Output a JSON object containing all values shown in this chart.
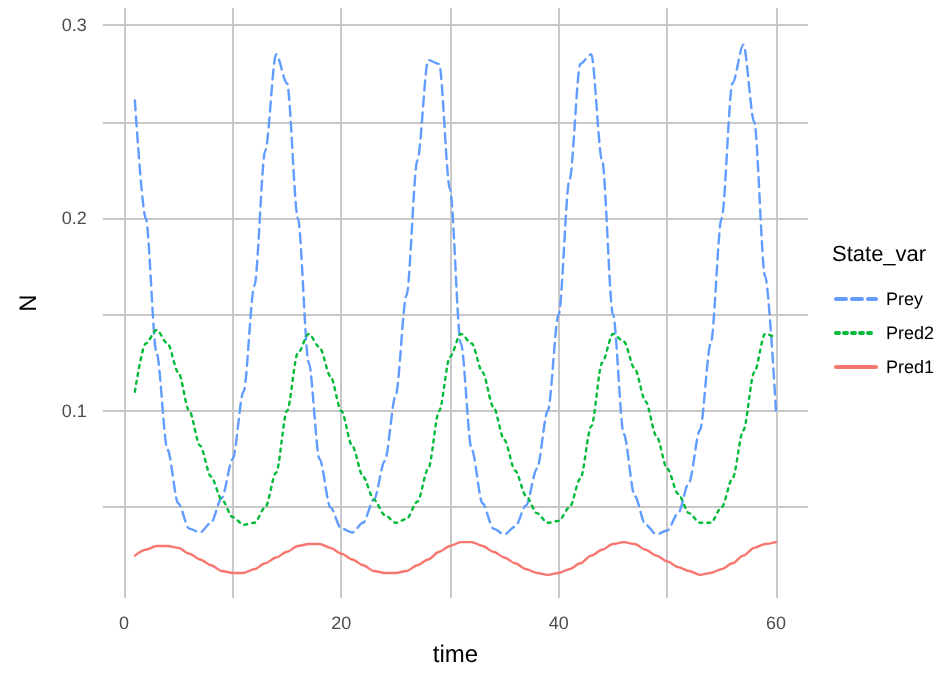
{
  "chart_data": {
    "type": "line",
    "xlabel": "time",
    "ylabel": "N",
    "legend_title": "State_var",
    "legend": "right",
    "grid": true,
    "marker": "none",
    "xlim": [
      -1.95,
      62.95
    ],
    "ylim": [
      0.003,
      0.309
    ],
    "xticks": [
      0,
      {
        "value": 10,
        "label": null
      },
      20,
      {
        "value": 30,
        "label": null
      },
      40,
      {
        "value": 50,
        "label": null
      },
      60
    ],
    "yticks": [
      {
        "value": 0.05,
        "label": null
      },
      0.1,
      {
        "value": 0.15,
        "label": null
      },
      0.2,
      {
        "value": 0.25,
        "label": null
      },
      0.3
    ],
    "x": [
      1,
      2,
      3,
      4,
      5,
      6,
      7,
      8,
      9,
      10,
      11,
      12,
      13,
      14,
      15,
      16,
      17,
      18,
      19,
      20,
      21,
      22,
      23,
      24,
      25,
      26,
      27,
      28,
      29,
      30,
      31,
      32,
      33,
      34,
      35,
      36,
      37,
      38,
      39,
      40,
      41,
      42,
      43,
      44,
      45,
      46,
      47,
      48,
      49,
      50,
      51,
      52,
      53,
      54,
      55,
      56,
      57,
      58,
      59,
      60
    ],
    "series": [
      {
        "name": "Prey",
        "color": "#619cff",
        "line_style": "dashed",
        "values": [
          0.261,
          0.2,
          0.13,
          0.08,
          0.052,
          0.039,
          0.037,
          0.042,
          0.055,
          0.075,
          0.11,
          0.165,
          0.235,
          0.285,
          0.27,
          0.2,
          0.125,
          0.075,
          0.05,
          0.039,
          0.037,
          0.042,
          0.054,
          0.074,
          0.108,
          0.16,
          0.23,
          0.282,
          0.28,
          0.215,
          0.135,
          0.08,
          0.052,
          0.039,
          0.036,
          0.04,
          0.051,
          0.07,
          0.1,
          0.15,
          0.22,
          0.28,
          0.285,
          0.23,
          0.15,
          0.088,
          0.056,
          0.041,
          0.036,
          0.038,
          0.047,
          0.063,
          0.09,
          0.135,
          0.2,
          0.27,
          0.29,
          0.25,
          0.17,
          0.1
        ]
      },
      {
        "name": "Pred2",
        "color": "#00ba38",
        "line_style": "dotted",
        "values": [
          0.11,
          0.135,
          0.142,
          0.135,
          0.12,
          0.1,
          0.082,
          0.066,
          0.054,
          0.045,
          0.041,
          0.042,
          0.05,
          0.068,
          0.1,
          0.13,
          0.14,
          0.133,
          0.118,
          0.1,
          0.082,
          0.066,
          0.054,
          0.046,
          0.042,
          0.044,
          0.053,
          0.07,
          0.1,
          0.128,
          0.14,
          0.135,
          0.12,
          0.102,
          0.085,
          0.069,
          0.056,
          0.047,
          0.042,
          0.043,
          0.05,
          0.065,
          0.092,
          0.125,
          0.14,
          0.136,
          0.122,
          0.105,
          0.087,
          0.07,
          0.057,
          0.047,
          0.042,
          0.042,
          0.05,
          0.065,
          0.09,
          0.12,
          0.14,
          0.138
        ]
      },
      {
        "name": "Pred1",
        "color": "#f8766d",
        "line_style": "solid",
        "values": [
          0.025,
          0.028,
          0.03,
          0.03,
          0.029,
          0.026,
          0.023,
          0.02,
          0.017,
          0.016,
          0.016,
          0.018,
          0.021,
          0.024,
          0.027,
          0.03,
          0.031,
          0.031,
          0.029,
          0.026,
          0.023,
          0.02,
          0.017,
          0.016,
          0.016,
          0.017,
          0.02,
          0.023,
          0.027,
          0.03,
          0.032,
          0.032,
          0.03,
          0.027,
          0.024,
          0.021,
          0.018,
          0.016,
          0.015,
          0.016,
          0.018,
          0.021,
          0.025,
          0.028,
          0.031,
          0.032,
          0.031,
          0.028,
          0.025,
          0.022,
          0.019,
          0.017,
          0.015,
          0.016,
          0.018,
          0.021,
          0.025,
          0.029,
          0.031,
          0.032
        ]
      }
    ]
  }
}
